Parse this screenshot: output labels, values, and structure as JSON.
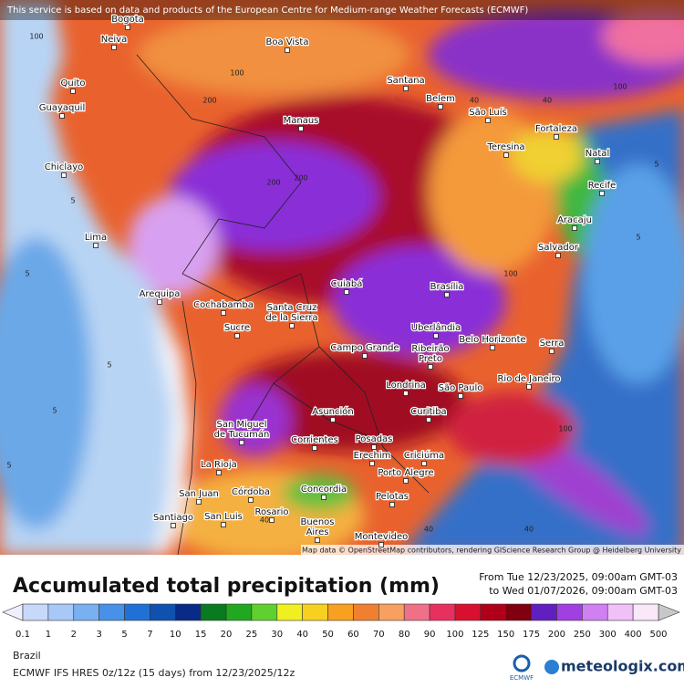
{
  "header": {
    "notice": "This service is based on data and products of the European Centre for Medium-range Weather Forecasts (ECMWF)",
    "attribution": "Map data © OpenStreetMap contributors, rendering GIScience Research Group @ Heidelberg University"
  },
  "cities": [
    [
      "Bogota"
    ],
    [
      "Neiva"
    ],
    [
      "Boa Vista"
    ],
    [
      "Quito"
    ],
    [
      "Guayaquil"
    ],
    [
      "Santana"
    ],
    [
      "Belem"
    ],
    [
      "São Luís"
    ],
    [
      "Fortaleza"
    ],
    [
      "Manaus"
    ],
    [
      "Teresina"
    ],
    [
      "Natal"
    ],
    [
      "Chiclayo"
    ],
    [
      "Recife"
    ],
    [
      "Aracaju"
    ],
    [
      "Lima"
    ],
    [
      "Salvador"
    ],
    [
      "Arequipa"
    ],
    [
      "Cuiabá"
    ],
    [
      "Brasília"
    ],
    [
      "Cochabamba"
    ],
    [
      "Santa Cruz",
      "de la Sierra"
    ],
    [
      "Sucre"
    ],
    [
      "Uberlândia"
    ],
    [
      "Belo Horizonte"
    ],
    [
      "Serra"
    ],
    [
      "Campo Grande"
    ],
    [
      "Ribeirão",
      "Preto"
    ],
    [
      "Rio de Janeiro"
    ],
    [
      "Londrina"
    ],
    [
      "São Paulo"
    ],
    [
      "Curitiba"
    ],
    [
      "Asunción"
    ],
    [
      "San Miguel",
      "de Tucumán"
    ],
    [
      "Corrientes"
    ],
    [
      "Posadas"
    ],
    [
      "Erechim"
    ],
    [
      "Criciúma"
    ],
    [
      "La Rioja"
    ],
    [
      "Porto Alegre"
    ],
    [
      "San Juan"
    ],
    [
      "Córdoba"
    ],
    [
      "Concordia"
    ],
    [
      "Pelotas"
    ],
    [
      "Rosario"
    ],
    [
      "Santiago"
    ],
    [
      "San Luis"
    ],
    [
      "Buenos",
      "Aires"
    ],
    [
      "Montevideo"
    ]
  ],
  "map_labels": [
    "100",
    "200",
    "100",
    "40",
    "100",
    "40",
    "5",
    "5",
    "5",
    "5",
    "5",
    "200",
    "200",
    "100",
    "40",
    "40",
    "100",
    "5",
    "5",
    "40"
  ],
  "legend": {
    "title": "Accumulated total precipitation (mm)",
    "from": "From Tue 12/23/2025, 09:00am GMT-03",
    "to": "to Wed 01/07/2026, 09:00am GMT-03",
    "ticks": [
      0.1,
      1,
      2,
      3,
      5,
      7,
      10,
      15,
      20,
      25,
      30,
      40,
      50,
      60,
      70,
      80,
      90,
      100,
      125,
      150,
      175,
      200,
      250,
      300,
      400,
      500
    ],
    "colors": [
      "#c8d8f8",
      "#a8c8f8",
      "#78b0f0",
      "#4890e8",
      "#2070d8",
      "#1050b0",
      "#0a2a88",
      "#0a7a20",
      "#20a820",
      "#60d030",
      "#f0f020",
      "#f8d020",
      "#f8a020",
      "#f08030",
      "#f8a060",
      "#f07088",
      "#e83060",
      "#d81030",
      "#b00018",
      "#800010",
      "#6020c0",
      "#a040e0",
      "#d080f0",
      "#f0c0f8",
      "#f8e8f8"
    ],
    "low_color": "#eef0ff",
    "high_color": "#c8c8c8"
  },
  "footer": {
    "region": "Brazil",
    "model": "ECMWF IFS HRES 0z/12z (15 days) from 12/23/2025/12z",
    "ecmwf": "ECMWF",
    "brand": "meteologix.com"
  }
}
